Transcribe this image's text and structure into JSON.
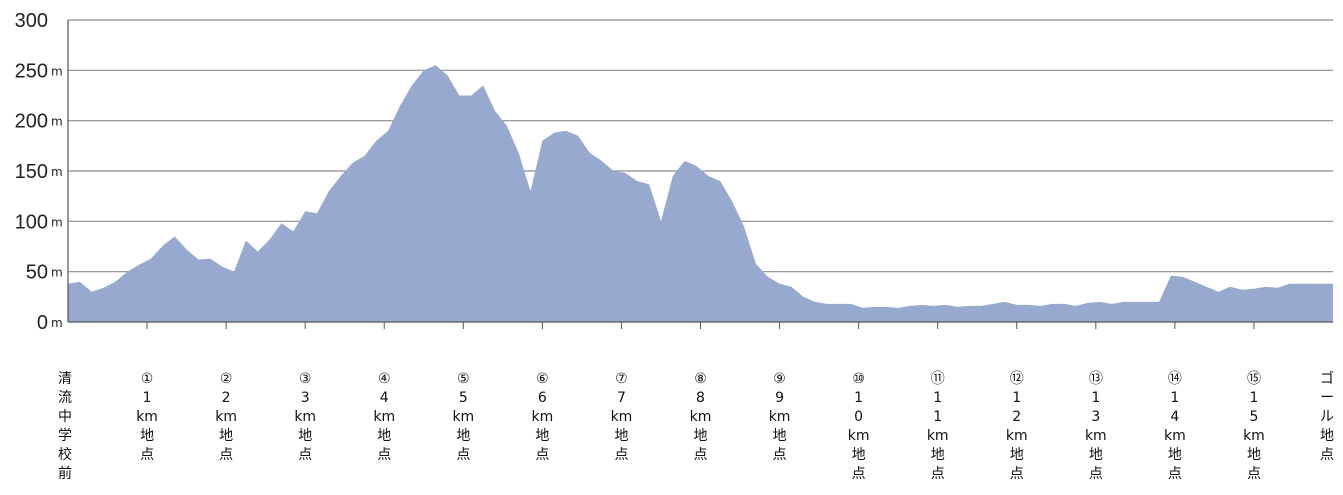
{
  "chart_data": {
    "type": "area",
    "title": "",
    "xlabel": "",
    "ylabel": "",
    "ylim": [
      0,
      300
    ],
    "yticks": [
      "0",
      "50",
      "100",
      "150",
      "200",
      "250",
      "300"
    ],
    "yunit": "m",
    "grid": true,
    "area_color": "#98a9cf",
    "categories": [
      [
        "清",
        "流",
        "中",
        "学",
        "校",
        "前"
      ],
      [
        "①",
        "1",
        "km",
        "地",
        "点"
      ],
      [
        "②",
        "2",
        "km",
        "地",
        "点"
      ],
      [
        "③",
        "3",
        "km",
        "地",
        "点"
      ],
      [
        "④",
        "4",
        "km",
        "地",
        "点"
      ],
      [
        "⑤",
        "5",
        "km",
        "地",
        "点"
      ],
      [
        "⑥",
        "6",
        "km",
        "地",
        "点"
      ],
      [
        "⑦",
        "7",
        "km",
        "地",
        "点"
      ],
      [
        "⑧",
        "8",
        "km",
        "地",
        "点"
      ],
      [
        "⑨",
        "9",
        "km",
        "地",
        "点"
      ],
      [
        "⑩",
        "1",
        "0",
        "km",
        "地",
        "点"
      ],
      [
        "⑪",
        "1",
        "1",
        "km",
        "地",
        "点"
      ],
      [
        "⑫",
        "1",
        "2",
        "km",
        "地",
        "点"
      ],
      [
        "⑬",
        "1",
        "3",
        "km",
        "地",
        "点"
      ],
      [
        "⑭",
        "1",
        "4",
        "km",
        "地",
        "点"
      ],
      [
        "⑮",
        "1",
        "5",
        "km",
        "地",
        "点"
      ],
      [
        "ゴ",
        "ー",
        "ル",
        "地",
        "点"
      ]
    ],
    "x": [
      0.0,
      0.15,
      0.3,
      0.45,
      0.6,
      0.75,
      0.9,
      1.05,
      1.2,
      1.35,
      1.5,
      1.65,
      1.8,
      1.95,
      2.1,
      2.25,
      2.4,
      2.55,
      2.7,
      2.85,
      3.0,
      3.15,
      3.3,
      3.45,
      3.6,
      3.75,
      3.9,
      4.05,
      4.2,
      4.35,
      4.5,
      4.65,
      4.8,
      4.95,
      5.1,
      5.25,
      5.4,
      5.55,
      5.7,
      5.85,
      6.0,
      6.15,
      6.3,
      6.45,
      6.6,
      6.75,
      6.9,
      7.05,
      7.2,
      7.35,
      7.5,
      7.65,
      7.8,
      7.95,
      8.1,
      8.25,
      8.4,
      8.55,
      8.7,
      8.85,
      9.0,
      9.15,
      9.3,
      9.45,
      9.6,
      9.75,
      9.9,
      10.05,
      10.2,
      10.35,
      10.5,
      10.65,
      10.8,
      10.95,
      11.1,
      11.25,
      11.4,
      11.55,
      11.7,
      11.85,
      12.0,
      12.15,
      12.3,
      12.45,
      12.6,
      12.75,
      12.9,
      13.05,
      13.2,
      13.35,
      13.5,
      13.65,
      13.8,
      13.95,
      14.1,
      14.25,
      14.4,
      14.55,
      14.7,
      14.85,
      15.0,
      15.15,
      15.3,
      15.45,
      15.6,
      15.75,
      15.9,
      16.0
    ],
    "values": [
      38,
      40,
      30,
      34,
      40,
      50,
      57,
      63,
      76,
      85,
      72,
      62,
      63,
      55,
      50,
      81,
      70,
      82,
      98,
      90,
      110,
      108,
      130,
      145,
      158,
      165,
      180,
      190,
      215,
      235,
      250,
      255,
      245,
      225,
      225,
      235,
      210,
      195,
      168,
      130,
      180,
      188,
      190,
      185,
      168,
      160,
      150,
      148,
      140,
      137,
      100,
      145,
      160,
      155,
      145,
      140,
      120,
      95,
      58,
      45,
      38,
      35,
      25,
      20,
      18,
      18,
      18,
      14,
      15,
      15,
      14,
      16,
      17,
      16,
      17,
      15,
      16,
      16,
      18,
      20,
      17,
      17,
      16,
      18,
      18,
      16,
      19,
      20,
      18,
      20,
      20,
      20,
      20,
      46,
      45,
      40,
      35,
      30,
      35,
      32,
      33,
      35,
      34,
      38,
      38,
      38,
      38,
      38
    ]
  }
}
